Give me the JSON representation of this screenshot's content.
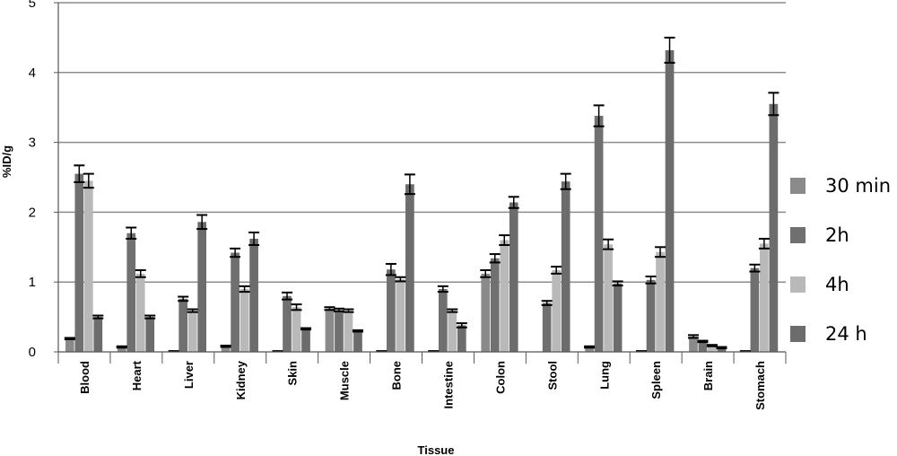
{
  "chart_data": {
    "type": "bar",
    "xlabel": "Tissue",
    "ylabel": "%ID/g",
    "ylim": [
      0,
      5
    ],
    "yticks": [
      "0",
      "1",
      "2",
      "3",
      "4",
      "5"
    ],
    "grid": true,
    "legend_position": "right",
    "categories": [
      "Blood",
      "Heart",
      "Liver",
      "Kidney",
      "Skin",
      "Muscle",
      "Bone",
      "Intestine",
      "Colon",
      "Stool",
      "Lung",
      "Spleen",
      "Brain",
      "Stomach"
    ],
    "series": [
      {
        "name": "30 min",
        "color": "#8a8a8a",
        "values": [
          0.19,
          0.07,
          0.01,
          0.08,
          0.01,
          0.62,
          0.01,
          0.01,
          1.12,
          0,
          0.07,
          0.01,
          0.22,
          0.01
        ],
        "errors": [
          0.01,
          0.01,
          0,
          0.01,
          0,
          0.02,
          0,
          0,
          0.05,
          0,
          0.01,
          0,
          0.02,
          0
        ]
      },
      {
        "name": "2h",
        "color": "#707070",
        "values": [
          2.55,
          1.7,
          0.76,
          1.42,
          0.8,
          0.6,
          1.18,
          0.9,
          1.34,
          0.7,
          3.38,
          1.03,
          0.15,
          1.2
        ],
        "errors": [
          0.12,
          0.08,
          0.03,
          0.06,
          0.05,
          0.02,
          0.08,
          0.04,
          0.06,
          0.03,
          0.15,
          0.05,
          0.01,
          0.05
        ]
      },
      {
        "name": "4h",
        "color": "#b9b9b9",
        "values": [
          2.45,
          1.12,
          0.59,
          0.9,
          0.64,
          0.59,
          1.04,
          0.59,
          1.6,
          1.17,
          1.54,
          1.43,
          0.09,
          1.55
        ],
        "errors": [
          0.1,
          0.05,
          0.02,
          0.04,
          0.04,
          0.02,
          0.03,
          0.02,
          0.07,
          0.05,
          0.07,
          0.07,
          0.01,
          0.07
        ]
      },
      {
        "name": "24 h",
        "color": "#6c6c6c",
        "values": [
          0.5,
          0.5,
          1.86,
          1.62,
          0.33,
          0.3,
          2.4,
          0.38,
          2.14,
          2.44,
          0.98,
          4.32,
          0.06,
          3.55
        ],
        "errors": [
          0.02,
          0.02,
          0.1,
          0.09,
          0.01,
          0.01,
          0.14,
          0.03,
          0.08,
          0.11,
          0.03,
          0.18,
          0.01,
          0.16
        ]
      }
    ]
  }
}
